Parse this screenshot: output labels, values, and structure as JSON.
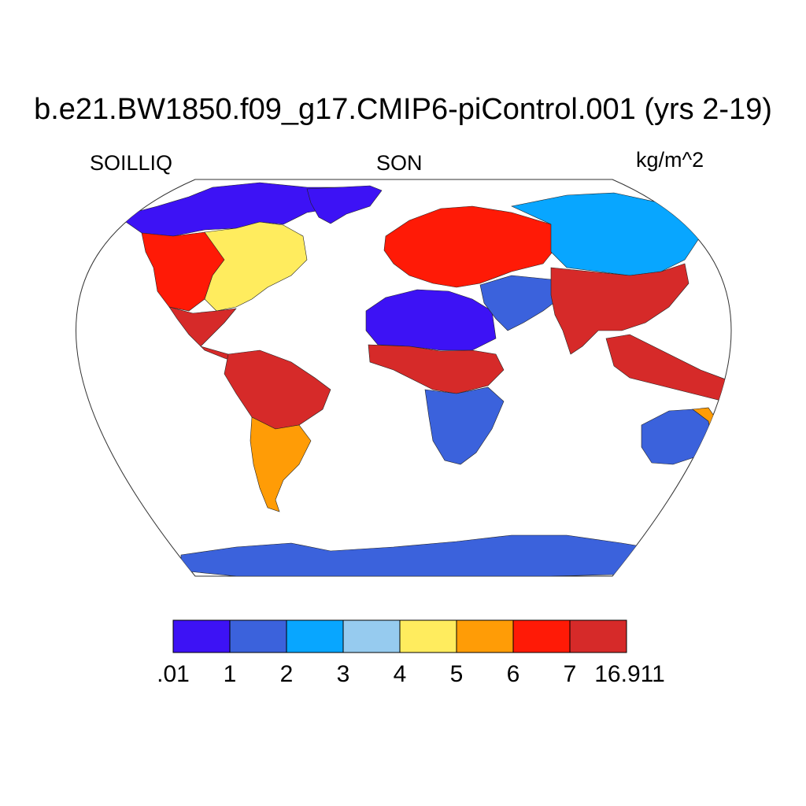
{
  "title": "b.e21.BW1850.f09_g17.CMIP6-piControl.001 (yrs 2-19)",
  "variable": "SOILLIQ",
  "season": "SON",
  "units": "kg/m^2",
  "colorbar": {
    "colors": [
      "#3d12f5",
      "#3b62dc",
      "#08a6ff",
      "#96cbef",
      "#ffec5e",
      "#ff9c06",
      "#ff1a06",
      "#d62a29"
    ],
    "labels": [
      ".01",
      "1",
      "2",
      "3",
      "4",
      "5",
      "6",
      "7",
      "16.911"
    ]
  },
  "regions": [
    {
      "name": "north-america-arctic",
      "level": 0
    },
    {
      "name": "greenland",
      "level": 0
    },
    {
      "name": "north-america-east",
      "level": 6
    },
    {
      "name": "north-america-west",
      "level": 4
    },
    {
      "name": "central-america",
      "level": 7
    },
    {
      "name": "amazon",
      "level": 7
    },
    {
      "name": "south-america-south",
      "level": 5
    },
    {
      "name": "europe",
      "level": 6
    },
    {
      "name": "siberia",
      "level": 2
    },
    {
      "name": "sahara",
      "level": 0
    },
    {
      "name": "arabia",
      "level": 1
    },
    {
      "name": "sahel-congo",
      "level": 7
    },
    {
      "name": "southern-africa",
      "level": 1
    },
    {
      "name": "india-china",
      "level": 7
    },
    {
      "name": "southeast-asia",
      "level": 7
    },
    {
      "name": "australia-interior",
      "level": 1
    },
    {
      "name": "australia-east",
      "level": 5
    },
    {
      "name": "new-zealand",
      "level": 7
    },
    {
      "name": "antarctica",
      "level": 1
    }
  ]
}
